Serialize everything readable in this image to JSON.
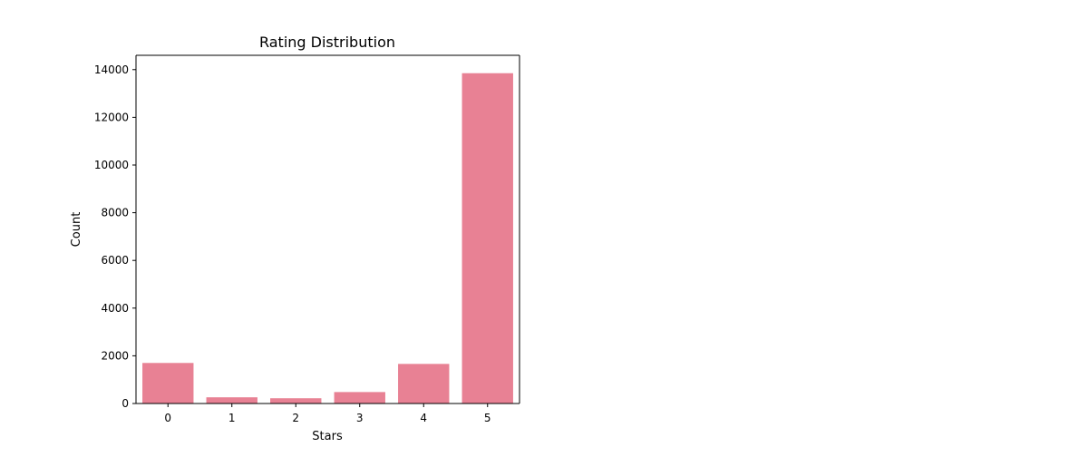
{
  "chart_data": {
    "type": "bar",
    "title": "Rating Distribution",
    "xlabel": "Stars",
    "ylabel": "Count",
    "categories": [
      "0",
      "1",
      "2",
      "3",
      "4",
      "5"
    ],
    "values": [
      1700,
      260,
      220,
      480,
      1660,
      13850
    ],
    "ylim": [
      0,
      14600
    ],
    "yticks": [
      0,
      2000,
      4000,
      6000,
      8000,
      10000,
      12000,
      14000
    ],
    "ytick_labels": [
      "0",
      "2000",
      "4000",
      "6000",
      "8000",
      "10000",
      "12000",
      "14000"
    ],
    "bar_color": "#e88194",
    "grid": false,
    "legend": "none"
  }
}
